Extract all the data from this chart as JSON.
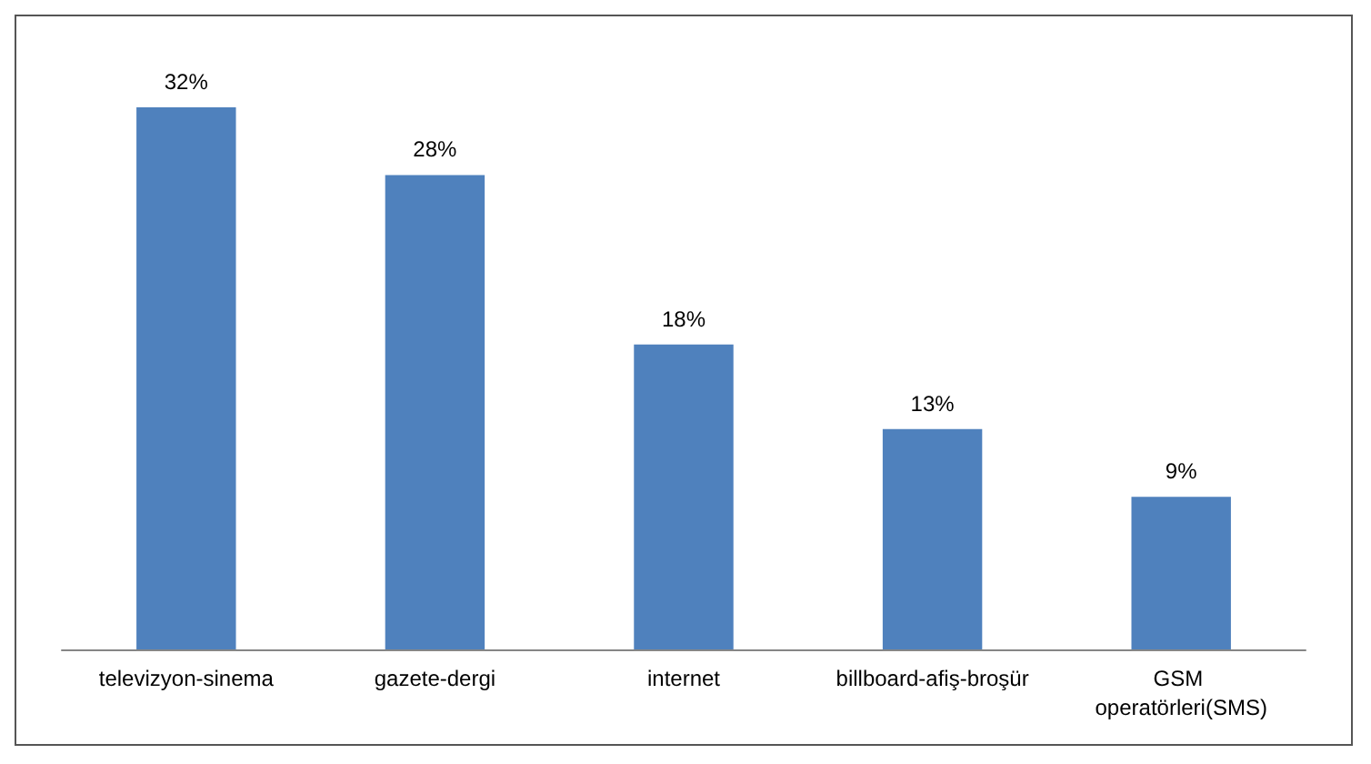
{
  "chart_data": {
    "type": "bar",
    "categories": [
      "televizyon-sinema",
      "gazete-dergi",
      "internet",
      "billboard-afiş-broşür",
      "GSM operatörleri(SMS)"
    ],
    "values": [
      32,
      28,
      18,
      13,
      9
    ],
    "value_labels": [
      "32%",
      "28%",
      "18%",
      "13%",
      "9%"
    ],
    "color": "#4f81bd"
  }
}
